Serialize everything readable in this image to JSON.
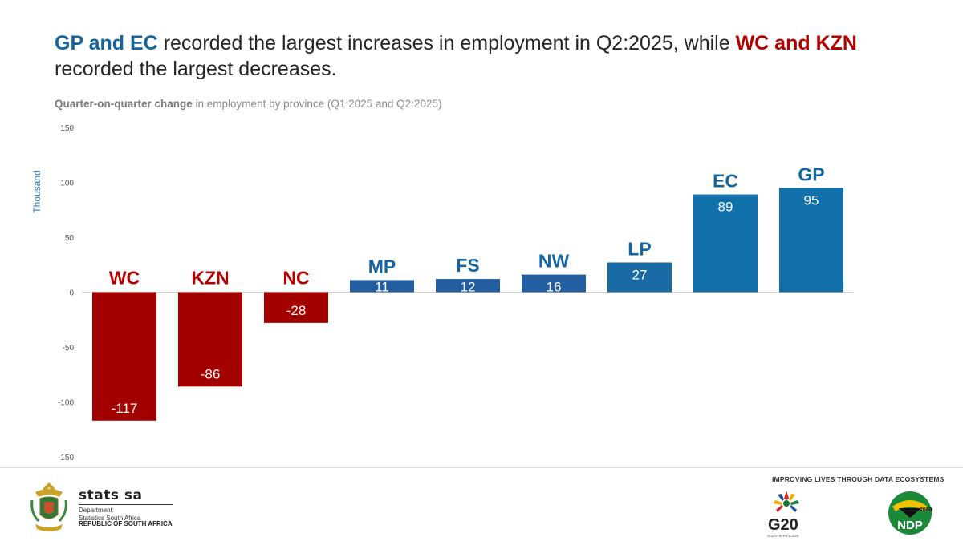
{
  "headline": {
    "part1": "GP and EC",
    "part2": " recorded the largest increases in employment in Q2:2025, while ",
    "part3": "WC and KZN",
    "part4": " recorded the largest decreases."
  },
  "subtitle": {
    "bold": "Quarter-on-quarter change",
    "rest": " in employment by province  (Q1:2025 and Q2:2025)"
  },
  "chart_data": {
    "type": "bar",
    "ylabel": "Thousand",
    "ylim": [
      -150,
      150
    ],
    "yticks": [
      150,
      100,
      50,
      0,
      -50,
      -100,
      -150
    ],
    "grid": false,
    "categories": [
      "WC",
      "KZN",
      "NC",
      "MP",
      "FS",
      "NW",
      "LP",
      "EC",
      "GP"
    ],
    "values": [
      -117,
      -86,
      -28,
      11,
      12,
      16,
      27,
      89,
      95
    ],
    "colors": [
      "#a30000",
      "#a30000",
      "#a30000",
      "#235fa0",
      "#235fa0",
      "#235fa0",
      "#1a6aa6",
      "#1270aa",
      "#1270aa"
    ],
    "category_label_colors": [
      "#b00000",
      "#b00000",
      "#b00000",
      "#1565a0",
      "#1565a0",
      "#1565a0",
      "#1565a0",
      "#1565a0",
      "#1565a0"
    ]
  },
  "footer": {
    "brand": "stats sa",
    "department": "Department:\nStatistics South Africa",
    "country": "REPUBLIC OF SOUTH AFRICA",
    "tagline": "IMPROVING LIVES THROUGH DATA ECOSYSTEMS",
    "g20": "G20",
    "g20_sub": "SOUTH AFRICA 2025",
    "ndp": "NDP",
    "ndp_year": "2030"
  }
}
